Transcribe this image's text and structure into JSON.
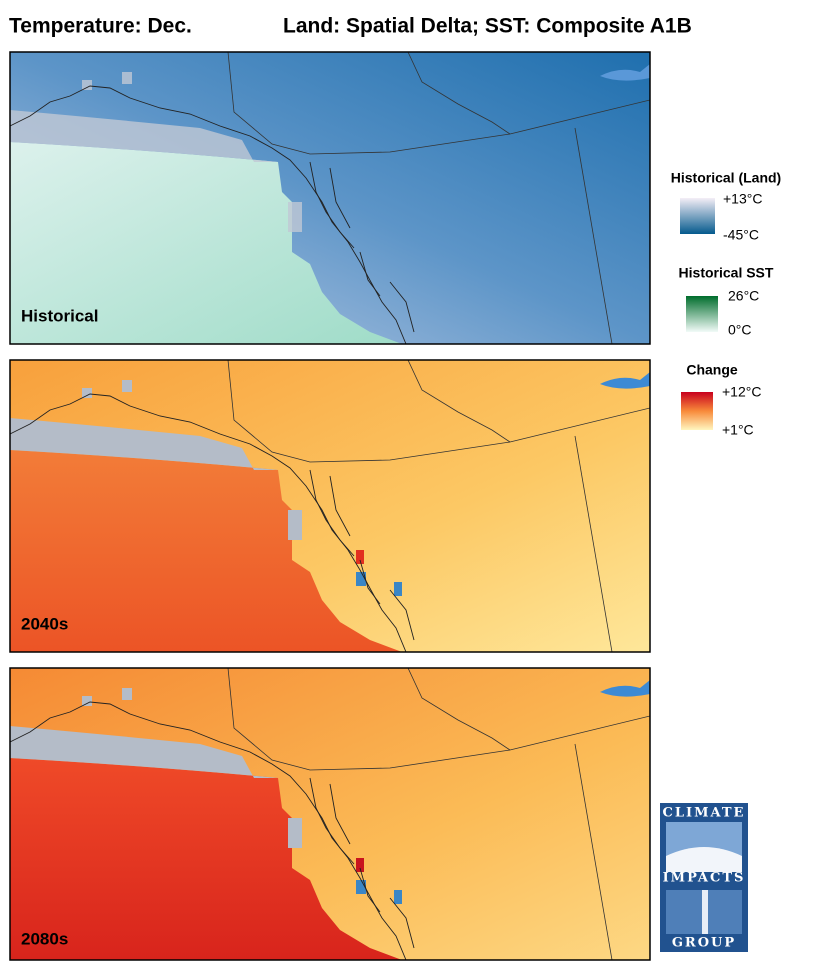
{
  "header": {
    "title_left": "Temperature: Dec.",
    "title_right": "Land: Spatial Delta; SST: Composite A1B"
  },
  "panels": [
    {
      "label": "Historical"
    },
    {
      "label": "2040s"
    },
    {
      "label": "2080s"
    }
  ],
  "legends": [
    {
      "title": "Historical (Land)",
      "max": "+13°C",
      "min": "-45°C"
    },
    {
      "title": "Historical SST",
      "max": "26°C",
      "min": "0°C"
    },
    {
      "title": "Change",
      "max": "+12°C",
      "min": "+1°C"
    }
  ],
  "logo": {
    "top": "CLIMATE",
    "middle": "IMPACTS",
    "bottom": "GROUP"
  }
}
